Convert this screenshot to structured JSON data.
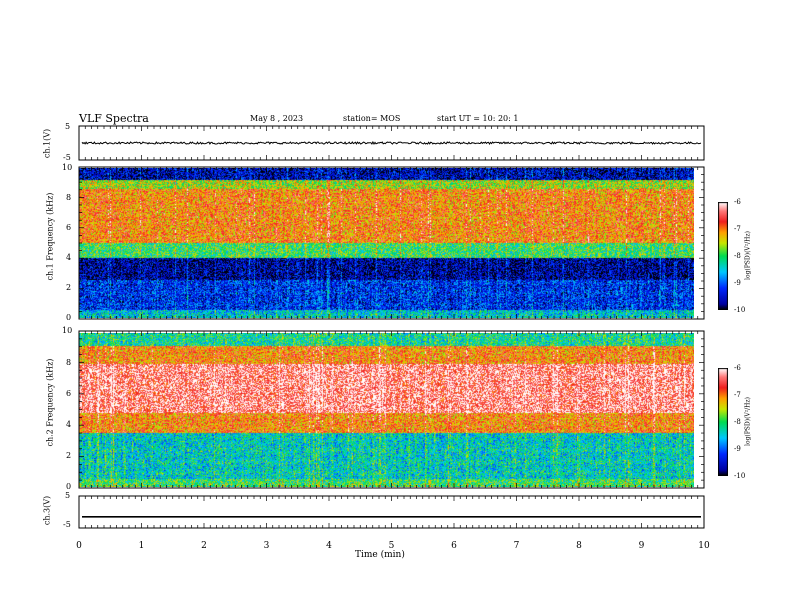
{
  "header": {
    "title": "VLF Spectra",
    "date": "May 8 , 2023",
    "station": "station= MOS",
    "start": "start UT = 10: 20: 1"
  },
  "chart_data": [
    {
      "type": "line",
      "panel": "ch1-waveform",
      "ylabel": "ch.1(V)",
      "ylim": [
        -5,
        5
      ],
      "yticks": [
        "5",
        "-5"
      ],
      "xlim": [
        0,
        10
      ],
      "series": [
        {
          "values_description_level": 0
        }
      ]
    },
    {
      "type": "heatmap",
      "panel": "ch1-spectrogram",
      "ylabel": "ch.1 Frequency (kHz)",
      "ylim": [
        0,
        10
      ],
      "yticks": [
        "0",
        "2",
        "4",
        "6",
        "8",
        "10"
      ],
      "colorbar": {
        "label": "log(PSD)(V²/Hz)",
        "range": [
          -10,
          -6
        ],
        "ticks": [
          "-6",
          "-7",
          "-8",
          "-9",
          "-10"
        ]
      },
      "bands": [
        {
          "from": 0,
          "to": 0.5,
          "level": -8.5
        },
        {
          "from": 0.5,
          "to": 2.5,
          "level": -9.3
        },
        {
          "from": 2.5,
          "to": 4,
          "level": -9.7
        },
        {
          "from": 4,
          "to": 5,
          "level": -8
        },
        {
          "from": 5,
          "to": 8.6,
          "level": -7
        },
        {
          "from": 8.6,
          "to": 9.2,
          "level": -7.6
        },
        {
          "from": 9.2,
          "to": 10,
          "level": -9.6
        }
      ]
    },
    {
      "type": "heatmap",
      "panel": "ch2-spectrogram",
      "ylabel": "ch.2 Frequency (kHz)",
      "ylim": [
        0,
        10
      ],
      "yticks": [
        "0",
        "2",
        "4",
        "6",
        "8",
        "10"
      ],
      "colorbar": {
        "label": "log(PSD)(V²/Hz)",
        "range": [
          -10,
          -6
        ],
        "ticks": [
          "-6",
          "-7",
          "-8",
          "-9",
          "-10"
        ]
      },
      "bands": [
        {
          "from": 0,
          "to": 0.5,
          "level": -8
        },
        {
          "from": 0.5,
          "to": 3.5,
          "level": -8.4
        },
        {
          "from": 3.5,
          "to": 4.8,
          "level": -7
        },
        {
          "from": 4.8,
          "to": 8,
          "level": -6.3
        },
        {
          "from": 8,
          "to": 9.2,
          "level": -7
        },
        {
          "from": 9.2,
          "to": 10,
          "level": -8.2
        }
      ]
    },
    {
      "type": "line",
      "panel": "ch3-waveform",
      "ylabel": "ch.3(V)",
      "ylim": [
        -5,
        5
      ],
      "yticks": [
        "5",
        "-5"
      ],
      "xlim": [
        0,
        10
      ],
      "series": [
        {
          "values_description_level": -1.5
        }
      ]
    }
  ],
  "xaxis": {
    "label": "Time (min)",
    "range": [
      0,
      10
    ],
    "ticks": [
      "0",
      "1",
      "2",
      "3",
      "4",
      "5",
      "6",
      "7",
      "8",
      "9",
      "10"
    ]
  }
}
